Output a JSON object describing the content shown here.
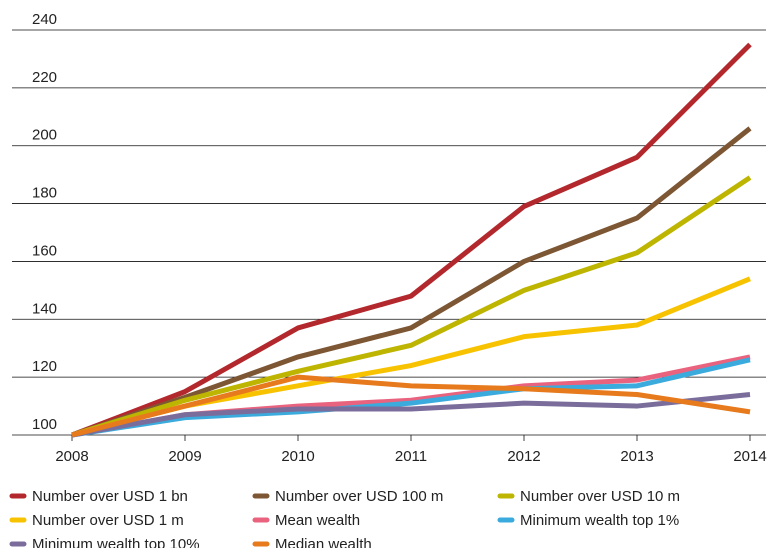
{
  "chart_data": {
    "type": "line",
    "categories": [
      "2008",
      "2009",
      "2010",
      "2011",
      "2012",
      "2013",
      "2014"
    ],
    "series": [
      {
        "name": "Number over USD 1 bn",
        "color": "#b3282d",
        "values": [
          100,
          115,
          137,
          148,
          179,
          196,
          235
        ]
      },
      {
        "name": "Number over USD 100 m",
        "color": "#7d5634",
        "values": [
          100,
          113,
          127,
          137,
          160,
          175,
          206
        ]
      },
      {
        "name": "Number over USD 10 m",
        "color": "#bdb500",
        "values": [
          100,
          112,
          122,
          131,
          150,
          163,
          189
        ]
      },
      {
        "name": "Number over USD 1 m",
        "color": "#f7c300",
        "values": [
          100,
          110,
          117,
          124,
          134,
          138,
          154
        ]
      },
      {
        "name": "Mean wealth",
        "color": "#e9637f",
        "values": [
          100,
          107,
          110,
          112,
          117,
          119,
          127
        ]
      },
      {
        "name": "Minimum wealth top 1%",
        "color": "#3babdd",
        "values": [
          100,
          106,
          108,
          111,
          116,
          117,
          126
        ]
      },
      {
        "name": "Minimum wealth top 10%",
        "color": "#7b6d9b",
        "values": [
          100,
          107,
          109,
          109,
          111,
          110,
          114
        ]
      },
      {
        "name": "Median wealth",
        "color": "#e67a1c",
        "values": [
          100,
          110,
          120,
          117,
          116,
          114,
          108
        ]
      }
    ],
    "ylim": [
      100,
      240
    ],
    "yticks": [
      100,
      120,
      140,
      160,
      180,
      200,
      220,
      240
    ],
    "grid": true
  }
}
